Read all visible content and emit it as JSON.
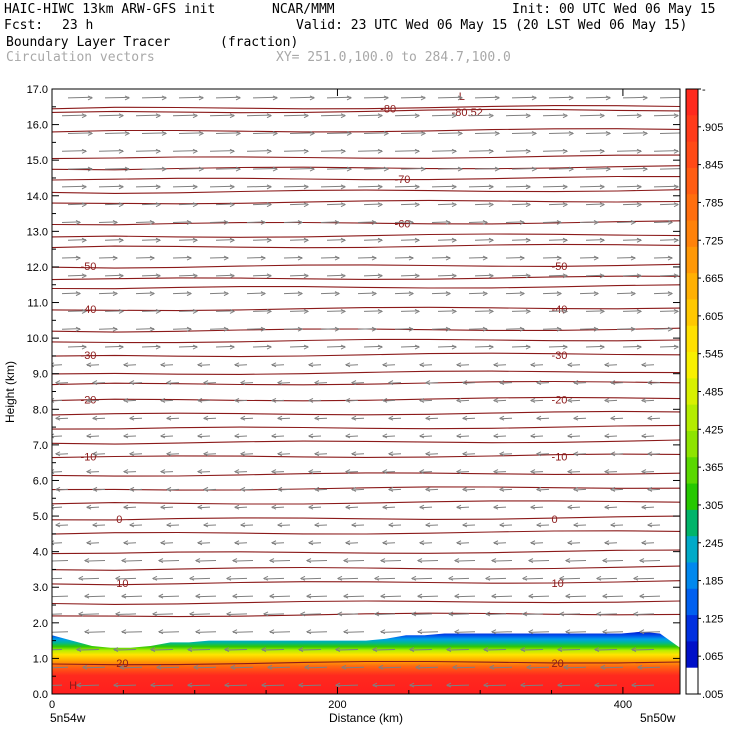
{
  "header": {
    "model": "HAIC-HIWC 13km ARW-GFS init",
    "org": "NCAR/MMM",
    "init": "Init: 00 UTC Wed 06 May 15",
    "fcst_label": "Fcst:",
    "fcst_value": "23 h",
    "valid": "Valid: 23 UTC Wed 06 May 15 (20 LST Wed 06 May 15)",
    "field": "Boundary Layer Tracer",
    "field_units": "(fraction)",
    "overlay": "Circulation vectors",
    "xy": "XY= 251.0,100.0 to 284.7,100.0"
  },
  "chart_data": {
    "type": "heatmap",
    "xlabel": "Distance (km)",
    "ylabel": "Height (km)",
    "xlim": [
      0,
      440
    ],
    "ylim": [
      0,
      17
    ],
    "x_ticks": [
      "0",
      "200",
      "400"
    ],
    "x_tick_values": [
      0,
      200,
      400
    ],
    "y_ticks": [
      "0.0",
      "1.0",
      "2.0",
      "3.0",
      "4.0",
      "5.0",
      "6.0",
      "7.0",
      "8.0",
      "9.0",
      "10.0",
      "11.0",
      "12.0",
      "13.0",
      "14.0",
      "15.0",
      "16.0",
      "17.0"
    ],
    "x_end_labels": [
      "5n54w",
      "5n50w"
    ],
    "tracer_top_height_km": [
      1.65,
      1.5,
      1.35,
      1.3,
      1.3,
      1.35,
      1.45,
      1.45,
      1.5,
      1.5,
      1.5,
      1.5,
      1.5,
      1.5,
      1.5,
      1.5,
      1.5,
      1.55,
      1.65,
      1.65,
      1.7,
      1.7,
      1.7,
      1.7,
      1.7,
      1.7,
      1.7,
      1.7,
      1.7,
      1.7,
      1.75,
      1.7,
      1.3
    ],
    "tracer_distance_km": [
      0,
      14,
      28,
      41,
      55,
      69,
      83,
      96,
      110,
      124,
      138,
      151,
      165,
      179,
      193,
      206,
      220,
      234,
      248,
      261,
      275,
      289,
      303,
      316,
      330,
      344,
      358,
      371,
      385,
      399,
      413,
      426,
      440
    ],
    "colorbar": {
      "labels": [
        "-",
        ".905",
        ".845",
        ".785",
        ".725",
        ".665",
        ".605",
        ".545",
        ".485",
        ".425",
        ".365",
        ".305",
        ".245",
        ".185",
        ".125",
        ".065",
        ".005"
      ],
      "colors": [
        "#ff2a1e",
        "#ff3b1a",
        "#ff4a16",
        "#ff5c12",
        "#ff6e0e",
        "#ff820a",
        "#ff9806",
        "#ffb003",
        "#ffc800",
        "#ffe000",
        "#f8f000",
        "#d8f000",
        "#b4ec00",
        "#8ee400",
        "#5ad800",
        "#26c800",
        "#00b46a",
        "#00aac8",
        "#0088ee",
        "#0060f0",
        "#0030e0",
        "#0010c8",
        "#ffffff"
      ]
    },
    "contours": [
      {
        "label": "20",
        "height_km": 0.9
      },
      {
        "label": "10",
        "height_km": 3.15
      },
      {
        "label": "0",
        "height_km": 4.95
      },
      {
        "label": "-10",
        "height_km": 6.7
      },
      {
        "label": "-20",
        "height_km": 8.3
      },
      {
        "label": "-30",
        "height_km": 9.55
      },
      {
        "label": "-40",
        "height_km": 10.85
      },
      {
        "label": "-50",
        "height_km": 12.05
      },
      {
        "label": "-60",
        "height_km": 13.25
      },
      {
        "label": "-70",
        "height_km": 14.5
      },
      {
        "label": "-80",
        "height_km": 16.5
      },
      {
        "label": "-80.52",
        "height_km": 16.4
      }
    ],
    "contour_levels_extra": [
      2.25,
      2.6,
      3.55,
      4.0,
      4.55,
      5.4,
      5.8,
      6.2,
      7.1,
      7.5,
      7.9,
      8.75,
      9.05,
      9.95,
      10.25,
      11.45,
      11.7,
      12.6,
      12.9,
      13.85,
      14.15,
      14.8,
      15.1,
      15.85
    ],
    "annotations": [
      {
        "text": "L",
        "x_km": 285,
        "y_km": 16.8
      },
      {
        "text": "H",
        "x_km": 12,
        "y_km": 0.25
      }
    ],
    "vectors": {
      "flow_direction_by_layer": [
        {
          "from_km": 0,
          "to_km": 4.0,
          "direction": "west"
        },
        {
          "from_km": 4.0,
          "to_km": 9.5,
          "direction": "west"
        },
        {
          "from_km": 9.5,
          "to_km": 17,
          "direction": "east"
        }
      ]
    }
  }
}
